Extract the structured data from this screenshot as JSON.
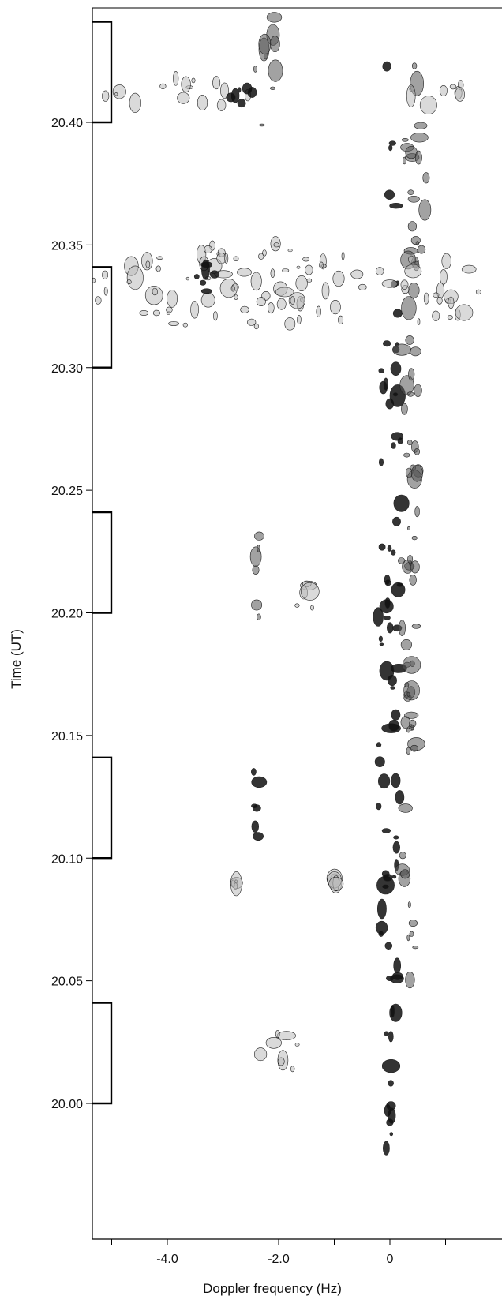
{
  "chart_data": {
    "type": "contour",
    "xlabel": "Doppler frequency (Hz)",
    "ylabel": "Time (UT)",
    "x_ticks": [
      {
        "value": -4.0,
        "label": "-4.0"
      },
      {
        "value": -2.0,
        "label": "-2.0"
      },
      {
        "value": 0,
        "label": "0"
      }
    ],
    "x_minor_ticks": [
      -5.0,
      -4.0,
      -3.0,
      -2.0,
      -1.0,
      0.0,
      1.0
    ],
    "y_ticks": [
      {
        "value": 20.0,
        "label": "20.00"
      },
      {
        "value": 20.05,
        "label": "20.05"
      },
      {
        "value": 20.1,
        "label": "20.10"
      },
      {
        "value": 20.15,
        "label": "20.15"
      },
      {
        "value": 20.2,
        "label": "20.20"
      },
      {
        "value": 20.25,
        "label": "20.25"
      },
      {
        "value": 20.3,
        "label": "20.30"
      },
      {
        "value": 20.35,
        "label": "20.35"
      },
      {
        "value": 20.4,
        "label": "20.40"
      }
    ],
    "xlim": [
      -5.4,
      1.6
    ],
    "ylim": [
      19.966,
      20.442
    ],
    "brackets": [
      {
        "start": 20.0,
        "end": 20.041
      },
      {
        "start": 20.1,
        "end": 20.141
      },
      {
        "start": 20.2,
        "end": 20.241
      },
      {
        "start": 20.3,
        "end": 20.341
      },
      {
        "start": 20.4,
        "end": 20.441
      }
    ],
    "echo_regions": [
      {
        "x": 0.0,
        "y": 20.2,
        "rx": 0.22,
        "ry": 0.235,
        "level": 3
      },
      {
        "x": 0.35,
        "y": 20.22,
        "rx": 0.18,
        "ry": 0.2,
        "level": 2
      },
      {
        "x": 0.5,
        "y": 20.39,
        "rx": 0.18,
        "ry": 0.05,
        "level": 2
      },
      {
        "x": -2.4,
        "y": 20.12,
        "rx": 0.08,
        "ry": 0.02,
        "level": 3
      },
      {
        "x": -2.4,
        "y": 20.215,
        "rx": 0.08,
        "ry": 0.025,
        "level": 2
      },
      {
        "x": -2.2,
        "y": 20.42,
        "rx": 0.22,
        "ry": 0.03,
        "level": 2
      },
      {
        "x": -2.0,
        "y": 20.018,
        "rx": 0.45,
        "ry": 0.012,
        "level": 1
      },
      {
        "x": -2.5,
        "y": 20.333,
        "rx": 2.9,
        "ry": 0.018,
        "level": 1
      },
      {
        "x": 0.9,
        "y": 20.333,
        "rx": 0.7,
        "ry": 0.018,
        "level": 1
      },
      {
        "x": -3.7,
        "y": 20.412,
        "rx": 1.6,
        "ry": 0.006,
        "level": 1
      },
      {
        "x": 0.9,
        "y": 20.412,
        "rx": 0.7,
        "ry": 0.006,
        "level": 1
      },
      {
        "x": -3.3,
        "y": 20.336,
        "rx": 0.18,
        "ry": 0.006,
        "level": 3
      },
      {
        "x": -2.75,
        "y": 20.412,
        "rx": 0.3,
        "ry": 0.005,
        "level": 3
      },
      {
        "x": -1.5,
        "y": 20.205,
        "rx": 0.18,
        "ry": 0.008,
        "level": 1
      },
      {
        "x": 0.4,
        "y": 20.272,
        "rx": 0.12,
        "ry": 0.04,
        "level": 2
      },
      {
        "x": 0.4,
        "y": 20.17,
        "rx": 0.1,
        "ry": 0.03,
        "level": 2
      },
      {
        "x": -1.0,
        "y": 20.09,
        "rx": 0.05,
        "ry": 0.002,
        "level": 1
      },
      {
        "x": -2.8,
        "y": 20.09,
        "rx": 0.05,
        "ry": 0.002,
        "level": 1
      }
    ]
  }
}
